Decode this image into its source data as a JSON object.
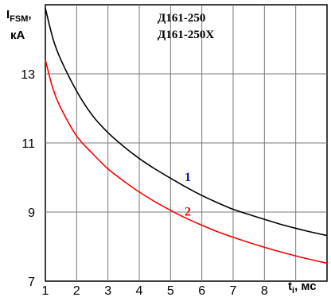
{
  "chart_data": {
    "type": "line",
    "title_lines": [
      "Д161-250",
      "Д161-250Х"
    ],
    "ylabel": {
      "main": "I",
      "sub": "FSM",
      "suffix": ",",
      "unit": "кА"
    },
    "xlabel": {
      "main": "t",
      "sub": "i",
      "suffix": ", мс"
    },
    "xlim": [
      1,
      10
    ],
    "ylim": [
      7,
      15
    ],
    "x_ticks": [
      1,
      2,
      3,
      4,
      5,
      6,
      7,
      8
    ],
    "y_ticks": [
      7,
      9,
      11,
      13
    ],
    "grid": true,
    "series": [
      {
        "name": "1",
        "color": "#000000",
        "label_color": "#1010a0",
        "label_at": [
          5.45,
          9.9
        ],
        "x": [
          1,
          1.25,
          1.5,
          2,
          2.5,
          3,
          3.5,
          4,
          4.5,
          5,
          5.5,
          6,
          6.5,
          7,
          7.5,
          8,
          8.5,
          9,
          9.5,
          10
        ],
        "y": [
          14.9,
          14.0,
          13.4,
          12.5,
          11.8,
          11.3,
          10.9,
          10.55,
          10.25,
          9.98,
          9.72,
          9.48,
          9.27,
          9.08,
          8.93,
          8.79,
          8.65,
          8.53,
          8.42,
          8.32
        ]
      },
      {
        "name": "2",
        "color": "#ff0000",
        "label_color": "#ff0000",
        "label_at": [
          5.45,
          8.9
        ],
        "x": [
          1,
          1.25,
          1.5,
          2,
          2.5,
          3,
          3.5,
          4,
          4.5,
          5,
          5.5,
          6,
          6.5,
          7,
          7.5,
          8,
          8.5,
          9,
          9.5,
          10
        ],
        "y": [
          13.4,
          12.55,
          12.0,
          11.2,
          10.7,
          10.25,
          9.9,
          9.58,
          9.3,
          9.05,
          8.82,
          8.62,
          8.43,
          8.27,
          8.12,
          7.98,
          7.85,
          7.73,
          7.62,
          7.52
        ]
      }
    ]
  }
}
